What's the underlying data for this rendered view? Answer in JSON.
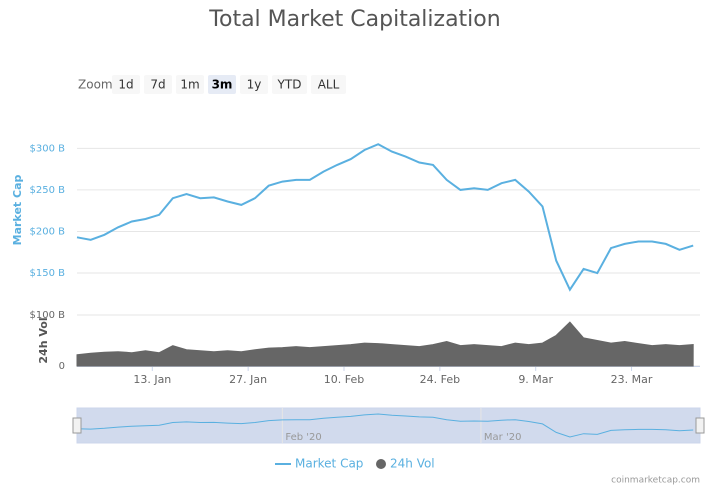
{
  "chart_data": {
    "type": "line",
    "title": "Total Market Capitalization",
    "zoom": {
      "label": "Zoom",
      "buttons": [
        "1d",
        "7d",
        "1m",
        "3m",
        "1y",
        "YTD",
        "ALL"
      ],
      "selected": 3
    },
    "x": [
      "2020-01-02",
      "2020-01-04",
      "2020-01-06",
      "2020-01-08",
      "2020-01-10",
      "2020-01-12",
      "2020-01-14",
      "2020-01-16",
      "2020-01-18",
      "2020-01-20",
      "2020-01-22",
      "2020-01-24",
      "2020-01-26",
      "2020-01-28",
      "2020-01-30",
      "2020-02-01",
      "2020-02-03",
      "2020-02-05",
      "2020-02-07",
      "2020-02-09",
      "2020-02-11",
      "2020-02-13",
      "2020-02-15",
      "2020-02-17",
      "2020-02-19",
      "2020-02-21",
      "2020-02-23",
      "2020-02-25",
      "2020-02-27",
      "2020-02-29",
      "2020-03-02",
      "2020-03-04",
      "2020-03-06",
      "2020-03-08",
      "2020-03-10",
      "2020-03-12",
      "2020-03-14",
      "2020-03-16",
      "2020-03-18",
      "2020-03-20",
      "2020-03-22",
      "2020-03-24",
      "2020-03-26",
      "2020-03-28",
      "2020-03-30",
      "2020-04-01"
    ],
    "xlim": [
      "2020-01-02",
      "2020-04-02"
    ],
    "xticks": [
      {
        "value": "2020-01-13",
        "label": "13. Jan"
      },
      {
        "value": "2020-01-27",
        "label": "27. Jan"
      },
      {
        "value": "2020-02-10",
        "label": "10. Feb"
      },
      {
        "value": "2020-02-24",
        "label": "24. Feb"
      },
      {
        "value": "2020-03-09",
        "label": "9. Mar"
      },
      {
        "value": "2020-03-23",
        "label": "23. Mar"
      }
    ],
    "series": [
      {
        "name": "Market Cap",
        "color": "#5ab0e0",
        "axis": "y",
        "y_label": "Market Cap",
        "values": [
          193,
          190,
          196,
          205,
          212,
          215,
          220,
          240,
          245,
          240,
          241,
          236,
          232,
          240,
          255,
          260,
          262,
          262,
          272,
          280,
          287,
          298,
          305,
          296,
          290,
          283,
          280,
          262,
          250,
          252,
          250,
          258,
          262,
          248,
          230,
          165,
          130,
          155,
          150,
          180,
          185,
          188,
          188,
          185,
          178,
          183
        ]
      },
      {
        "name": "24h Vol",
        "color": "#666666",
        "axis": "y2",
        "y_label": "24h Vol",
        "values": [
          22,
          25,
          27,
          28,
          26,
          30,
          26,
          40,
          32,
          30,
          28,
          30,
          28,
          32,
          35,
          36,
          38,
          36,
          38,
          40,
          42,
          45,
          44,
          42,
          40,
          38,
          42,
          48,
          40,
          42,
          40,
          38,
          45,
          42,
          45,
          60,
          86,
          55,
          50,
          45,
          48,
          44,
          40,
          42,
          40,
          42
        ]
      }
    ],
    "ylim": [
      120,
      310
    ],
    "yticks": [
      {
        "value": 150,
        "label": "$150 B"
      },
      {
        "value": 200,
        "label": "$200 B"
      },
      {
        "value": 250,
        "label": "$250 B"
      },
      {
        "value": 300,
        "label": "$300 B"
      }
    ],
    "y2lim": [
      0,
      100
    ],
    "y2ticks": [
      0,
      {
        "value": 100,
        "label": "$100 B"
      }
    ],
    "grid": true,
    "navigator": {
      "xticks": [
        {
          "value": "2020-02-01",
          "label": "Feb '20"
        },
        {
          "value": "2020-03-01",
          "label": "Mar '20"
        }
      ]
    },
    "legend": "bottom",
    "credit": "coinmarketcap.com"
  }
}
